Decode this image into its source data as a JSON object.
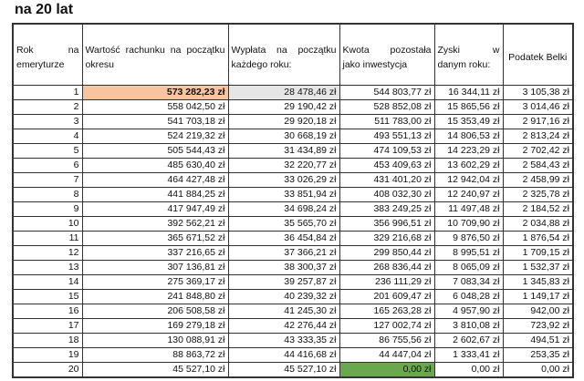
{
  "title": "na 20 lat",
  "headers": [
    "Rok na emeryturze",
    "Wartość rachunku na początku okresu",
    "Wypłata na początku każdego roku:",
    "Kwota pozostała jako inwestycja",
    "Zyski w danym roku:",
    "Podatek Belki"
  ],
  "colors": {
    "highlight_start": "#f8c4a0",
    "highlight_payout": "#e6e6e6",
    "highlight_end": "#6aa84f"
  },
  "rows": [
    [
      "1",
      "573 282,23 zł",
      "28 478,46 zł",
      "544 803,77 zł",
      "16 344,11 zł",
      "3 105,38 zł"
    ],
    [
      "2",
      "558 042,50 zł",
      "29 190,42 zł",
      "528 852,08 zł",
      "15 865,56 zł",
      "3 014,46 zł"
    ],
    [
      "3",
      "541 703,18 zł",
      "29 920,18 zł",
      "511 783,00 zł",
      "15 353,49 zł",
      "2 917,16 zł"
    ],
    [
      "4",
      "524 219,32 zł",
      "30 668,19 zł",
      "493 551,13 zł",
      "14 806,53 zł",
      "2 813,24 zł"
    ],
    [
      "5",
      "505 544,43 zł",
      "31 434,89 zł",
      "474 109,53 zł",
      "14 223,29 zł",
      "2 702,42 zł"
    ],
    [
      "6",
      "485 630,40 zł",
      "32 220,77 zł",
      "453 409,63 zł",
      "13 602,29 zł",
      "2 584,43 zł"
    ],
    [
      "7",
      "464 427,48 zł",
      "33 026,29 zł",
      "431 401,20 zł",
      "12 942,04 zł",
      "2 458,99 zł"
    ],
    [
      "8",
      "441 884,25 zł",
      "33 851,94 zł",
      "408 032,30 zł",
      "12 240,97 zł",
      "2 325,78 zł"
    ],
    [
      "9",
      "417 947,49 zł",
      "34 698,24 zł",
      "383 249,25 zł",
      "11 497,48 zł",
      "2 184,52 zł"
    ],
    [
      "10",
      "392 562,21 zł",
      "35 565,70 zł",
      "356 996,51 zł",
      "10 709,90 zł",
      "2 034,88 zł"
    ],
    [
      "11",
      "365 671,52 zł",
      "36 454,84 zł",
      "329 216,68 zł",
      "9 876,50 zł",
      "1 876,54 zł"
    ],
    [
      "12",
      "337 216,65 zł",
      "37 366,21 zł",
      "299 850,44 zł",
      "8 995,51 zł",
      "1 709,15 zł"
    ],
    [
      "13",
      "307 136,81 zł",
      "38 300,37 zł",
      "268 836,44 zł",
      "8 065,09 zł",
      "1 532,37 zł"
    ],
    [
      "14",
      "275 369,17 zł",
      "39 257,87 zł",
      "236 111,29 zł",
      "7 083,34 zł",
      "1 345,83 zł"
    ],
    [
      "15",
      "241 848,80 zł",
      "40 239,32 zł",
      "201 609,47 zł",
      "6 048,28 zł",
      "1 149,17 zł"
    ],
    [
      "16",
      "206 508,58 zł",
      "41 245,30 zł",
      "165 263,28 zł",
      "4 957,90 zł",
      "942,00 zł"
    ],
    [
      "17",
      "169 279,18 zł",
      "42 276,44 zł",
      "127 002,74 zł",
      "3 810,08 zł",
      "723,92 zł"
    ],
    [
      "18",
      "130 088,91 zł",
      "43 333,35 zł",
      "86 755,56 zł",
      "2 602,67 zł",
      "494,51 zł"
    ],
    [
      "19",
      "88 863,72 zł",
      "44 416,68 zł",
      "44 447,04 zł",
      "1 333,41 zł",
      "253,35 zł"
    ],
    [
      "20",
      "45 527,10 zł",
      "45 527,10 zł",
      "0,00 zł",
      "0,00 zł",
      "0,00 zł"
    ]
  ]
}
